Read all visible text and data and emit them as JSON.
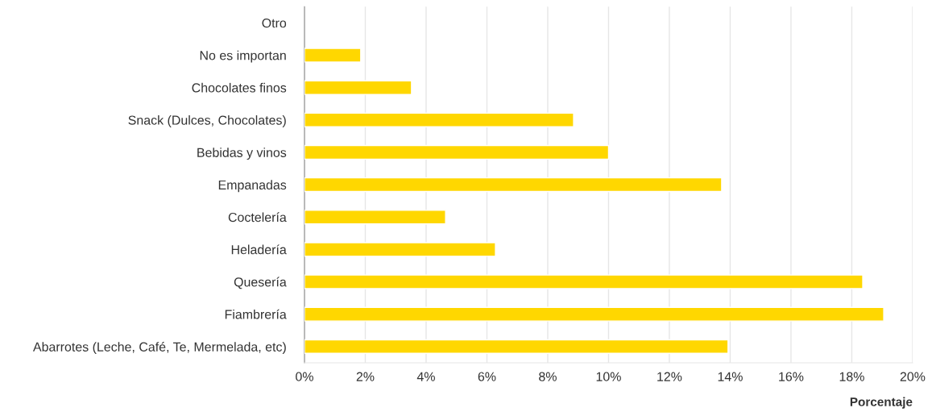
{
  "chart_data": {
    "type": "bar",
    "orientation": "horizontal",
    "xlabel": "Porcentaje",
    "categories": [
      "Otro",
      "No es importan",
      "Chocolates finos",
      "Snack (Dulces, Chocolates)",
      "Bebidas y vinos",
      "Empanadas",
      "Coctelería",
      "Heladería",
      "Quesería",
      "Fiambrería",
      "Abarrotes (Leche, Café, Te, Mermelada, etc)"
    ],
    "values": [
      null,
      1.85,
      3.52,
      8.85,
      10.0,
      13.72,
      4.64,
      6.28,
      18.36,
      19.05,
      13.93
    ],
    "color": "#ffd700",
    "xlim": [
      0,
      20
    ],
    "xticks": [
      {
        "value": 0,
        "label": "0%"
      },
      {
        "value": 2,
        "label": "2%"
      },
      {
        "value": 4,
        "label": "4%"
      },
      {
        "value": 6,
        "label": "6%"
      },
      {
        "value": 8,
        "label": "8%"
      },
      {
        "value": 10,
        "label": "10%"
      },
      {
        "value": 12,
        "label": "12%"
      },
      {
        "value": 14,
        "label": "14%"
      },
      {
        "value": 16,
        "label": "16%"
      },
      {
        "value": 18,
        "label": "18%"
      },
      {
        "value": 20,
        "label": "20%"
      }
    ],
    "grid": "x",
    "legend": false
  }
}
